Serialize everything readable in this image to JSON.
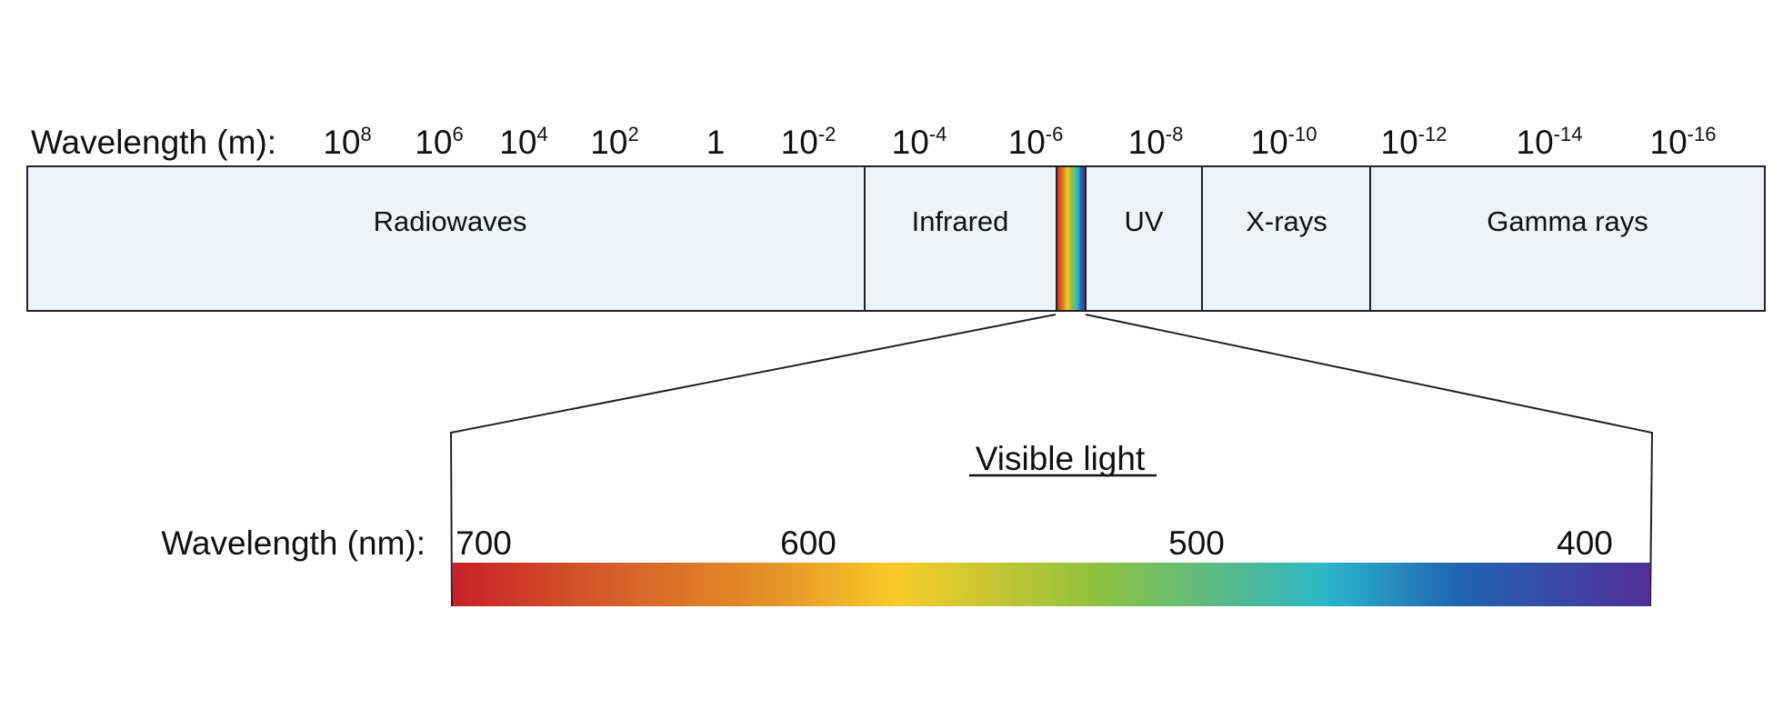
{
  "top_axis": {
    "label": "Wavelength (m):",
    "ticks": [
      {
        "base": "10",
        "exp": "8"
      },
      {
        "base": "10",
        "exp": "6"
      },
      {
        "base": "10",
        "exp": "4"
      },
      {
        "base": "10",
        "exp": "2"
      },
      {
        "base": "1",
        "exp": ""
      },
      {
        "base": "10",
        "exp": "-2"
      },
      {
        "base": "10",
        "exp": "-4"
      },
      {
        "base": "10",
        "exp": "-6"
      },
      {
        "base": "10",
        "exp": "-8"
      },
      {
        "base": "10",
        "exp": "-10"
      },
      {
        "base": "10",
        "exp": "-12"
      },
      {
        "base": "10",
        "exp": "-14"
      },
      {
        "base": "10",
        "exp": "-16"
      }
    ]
  },
  "bands": [
    "Radiowaves",
    "Infrared",
    "UV",
    "X-rays",
    "Gamma rays"
  ],
  "visible": {
    "title": "Visible light",
    "axis_label": "Wavelength (nm):",
    "ticks": [
      "700",
      "600",
      "500",
      "400"
    ]
  },
  "colors": {
    "band_fill": "#eef3f9",
    "spectrum": [
      "#c62127",
      "#d4592a",
      "#e38f27",
      "#f9cb29",
      "#8dc13f",
      "#2bb6c8",
      "#1f64b3",
      "#4f2f98"
    ]
  }
}
